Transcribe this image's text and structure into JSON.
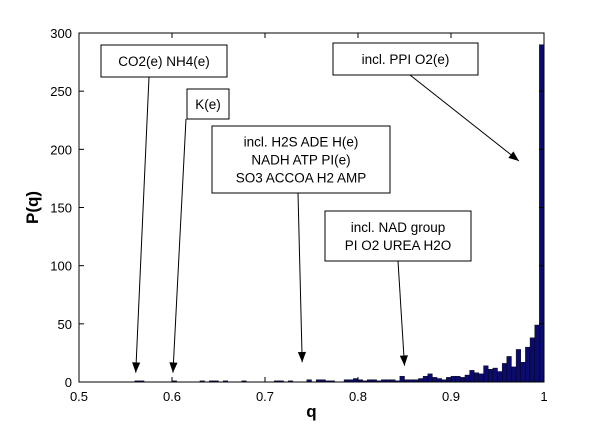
{
  "chart_data": {
    "type": "bar",
    "xlabel": "q",
    "ylabel": "P(q)",
    "xlim": [
      0.5,
      1.0
    ],
    "ylim": [
      0,
      300
    ],
    "x_ticks": [
      "0.5",
      "0.6",
      "0.7",
      "0.8",
      "0.9",
      "1"
    ],
    "y_ticks": [
      "0",
      "50",
      "100",
      "150",
      "200",
      "250",
      "300"
    ],
    "bar_color": "#0b0b6e",
    "bin_width": 0.005,
    "bars": [
      {
        "x": 0.5625,
        "y": 1
      },
      {
        "x": 0.5675,
        "y": 1
      },
      {
        "x": 0.6025,
        "y": 1
      },
      {
        "x": 0.6325,
        "y": 1
      },
      {
        "x": 0.6425,
        "y": 1
      },
      {
        "x": 0.6475,
        "y": 1
      },
      {
        "x": 0.6575,
        "y": 1
      },
      {
        "x": 0.6775,
        "y": 1
      },
      {
        "x": 0.7125,
        "y": 1
      },
      {
        "x": 0.7175,
        "y": 1
      },
      {
        "x": 0.7275,
        "y": 1
      },
      {
        "x": 0.7475,
        "y": 2
      },
      {
        "x": 0.7575,
        "y": 2
      },
      {
        "x": 0.7625,
        "y": 2
      },
      {
        "x": 0.7675,
        "y": 1
      },
      {
        "x": 0.7725,
        "y": 1
      },
      {
        "x": 0.7875,
        "y": 2
      },
      {
        "x": 0.7925,
        "y": 2
      },
      {
        "x": 0.7975,
        "y": 3
      },
      {
        "x": 0.8025,
        "y": 2
      },
      {
        "x": 0.8075,
        "y": 1
      },
      {
        "x": 0.8125,
        "y": 2
      },
      {
        "x": 0.8175,
        "y": 2
      },
      {
        "x": 0.8225,
        "y": 1
      },
      {
        "x": 0.8275,
        "y": 2
      },
      {
        "x": 0.8325,
        "y": 2
      },
      {
        "x": 0.8375,
        "y": 2
      },
      {
        "x": 0.8425,
        "y": 1
      },
      {
        "x": 0.8475,
        "y": 5
      },
      {
        "x": 0.8525,
        "y": 2
      },
      {
        "x": 0.8575,
        "y": 2
      },
      {
        "x": 0.8625,
        "y": 2
      },
      {
        "x": 0.8675,
        "y": 3
      },
      {
        "x": 0.8725,
        "y": 5
      },
      {
        "x": 0.8775,
        "y": 7
      },
      {
        "x": 0.8825,
        "y": 4
      },
      {
        "x": 0.8875,
        "y": 3
      },
      {
        "x": 0.8925,
        "y": 2
      },
      {
        "x": 0.8975,
        "y": 4
      },
      {
        "x": 0.9025,
        "y": 5
      },
      {
        "x": 0.9075,
        "y": 5
      },
      {
        "x": 0.9125,
        "y": 4
      },
      {
        "x": 0.9175,
        "y": 6
      },
      {
        "x": 0.9225,
        "y": 10
      },
      {
        "x": 0.9275,
        "y": 8
      },
      {
        "x": 0.9325,
        "y": 7
      },
      {
        "x": 0.9375,
        "y": 14
      },
      {
        "x": 0.9425,
        "y": 11
      },
      {
        "x": 0.9475,
        "y": 12
      },
      {
        "x": 0.9525,
        "y": 9
      },
      {
        "x": 0.9575,
        "y": 16
      },
      {
        "x": 0.9625,
        "y": 22
      },
      {
        "x": 0.9675,
        "y": 13
      },
      {
        "x": 0.9725,
        "y": 28
      },
      {
        "x": 0.9775,
        "y": 17
      },
      {
        "x": 0.9825,
        "y": 30
      },
      {
        "x": 0.9875,
        "y": 38
      },
      {
        "x": 0.9925,
        "y": 49
      },
      {
        "x": 0.9975,
        "y": 290
      }
    ],
    "annotations": [
      {
        "lines": [
          "CO2(e)  NH4(e)"
        ],
        "target": [
          0.561,
          8
        ]
      },
      {
        "lines": [
          "K(e)"
        ],
        "target": [
          0.601,
          8
        ]
      },
      {
        "lines": [
          "incl. H2S  ADE  H(e)",
          "NADH  ATP  PI(e)",
          "SO3 ACCOA H2 AMP"
        ],
        "target": [
          0.74,
          17
        ]
      },
      {
        "lines": [
          "incl. NAD group",
          "PI O2 UREA H2O"
        ],
        "target": [
          0.85,
          14
        ]
      },
      {
        "lines": [
          "incl. PPI  O2(e)"
        ],
        "target": [
          0.973,
          190
        ]
      }
    ]
  }
}
